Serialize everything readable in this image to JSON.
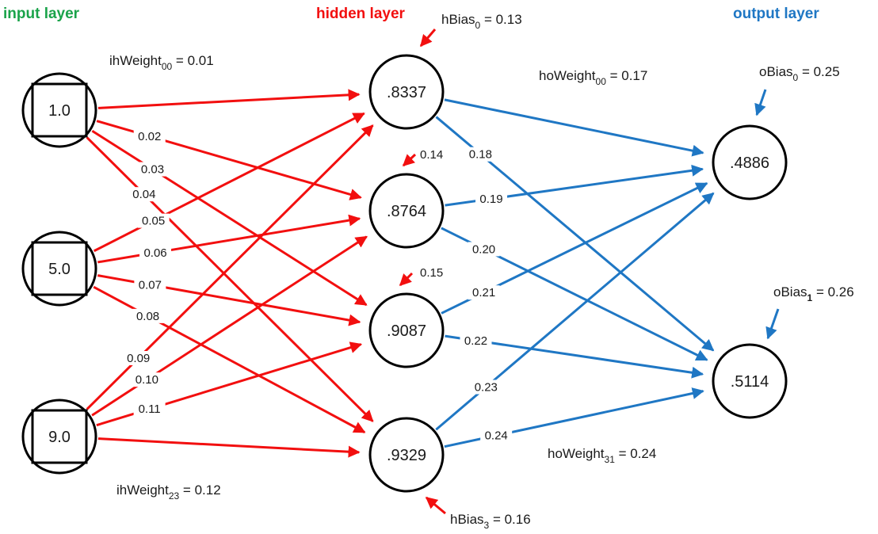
{
  "colors": {
    "input": "#1aa34a",
    "hidden": "#f20f0f",
    "output": "#1f77c4",
    "text": "#1a1a1a"
  },
  "layers": {
    "input": {
      "title": "input layer",
      "nodes": [
        "1.0",
        "5.0",
        "9.0"
      ]
    },
    "hidden": {
      "title": "hidden layer",
      "nodes": [
        ".8337",
        ".8764",
        ".9087",
        ".9329"
      ]
    },
    "output": {
      "title": "output layer",
      "nodes": [
        ".4886",
        ".5114"
      ]
    }
  },
  "ih_weights": [
    "0.01",
    "0.02",
    "0.03",
    "0.04",
    "0.05",
    "0.06",
    "0.07",
    "0.08",
    "0.09",
    "0.10",
    "0.11",
    "0.12"
  ],
  "ho_weights": [
    "0.17",
    "0.18",
    "0.19",
    "0.20",
    "0.21",
    "0.22",
    "0.23",
    "0.24"
  ],
  "hidden_bias_values": [
    "0.14",
    "0.15"
  ],
  "named_labels": {
    "ih_first": {
      "name": "ihWeight",
      "sub": "00",
      "value": " = 0.01"
    },
    "ih_last": {
      "name": "ihWeight",
      "sub": "23",
      "value": " = 0.12"
    },
    "ho_first": {
      "name": "hoWeight",
      "sub": "00",
      "value": " = 0.17"
    },
    "ho_last": {
      "name": "hoWeight",
      "sub": "31",
      "value": " = 0.24"
    },
    "hbias_first": {
      "name": "hBias",
      "sub": "0",
      "value": " = 0.13"
    },
    "hbias_last": {
      "name": "hBias",
      "sub": "3",
      "value": " = 0.16"
    },
    "obias_first": {
      "name": "oBias",
      "sub": "0",
      "value": " = 0.25"
    },
    "obias_last": {
      "name": "oBias",
      "sub": "1",
      "value": " = 0.26"
    }
  }
}
